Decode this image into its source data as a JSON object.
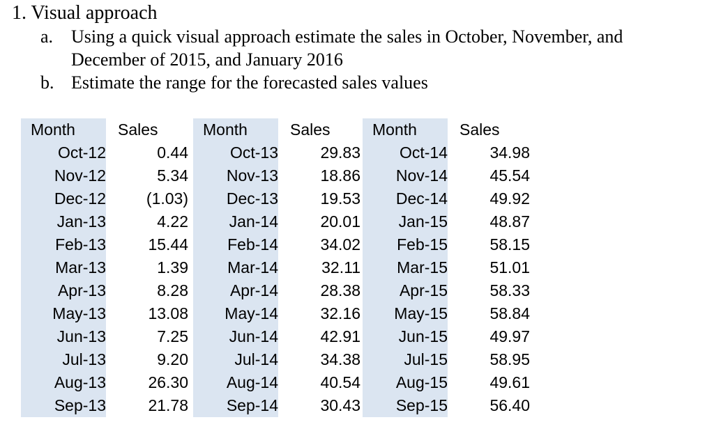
{
  "problem": {
    "title": "1. Visual approach",
    "items": [
      {
        "marker": "a.",
        "lines": [
          "Using a quick visual approach estimate the sales in October, November, and",
          "December of 2015, and January 2016"
        ]
      },
      {
        "marker": "b.",
        "lines": [
          "Estimate the range for the forecasted sales values"
        ]
      }
    ]
  },
  "tables": [
    {
      "headers": [
        "Month",
        "Sales"
      ],
      "rows": [
        [
          "Oct-12",
          "0.44"
        ],
        [
          "Nov-12",
          "5.34"
        ],
        [
          "Dec-12",
          "(1.03)"
        ],
        [
          "Jan-13",
          "4.22"
        ],
        [
          "Feb-13",
          "15.44"
        ],
        [
          "Mar-13",
          "1.39"
        ],
        [
          "Apr-13",
          "8.28"
        ],
        [
          "May-13",
          "13.08"
        ],
        [
          "Jun-13",
          "7.25"
        ],
        [
          "Jul-13",
          "9.20"
        ],
        [
          "Aug-13",
          "26.30"
        ],
        [
          "Sep-13",
          "21.78"
        ]
      ]
    },
    {
      "headers": [
        "Month",
        "Sales"
      ],
      "rows": [
        [
          "Oct-13",
          "29.83"
        ],
        [
          "Nov-13",
          "18.86"
        ],
        [
          "Dec-13",
          "19.53"
        ],
        [
          "Jan-14",
          "20.01"
        ],
        [
          "Feb-14",
          "34.02"
        ],
        [
          "Mar-14",
          "32.11"
        ],
        [
          "Apr-14",
          "28.38"
        ],
        [
          "May-14",
          "32.16"
        ],
        [
          "Jun-14",
          "42.91"
        ],
        [
          "Jul-14",
          "34.38"
        ],
        [
          "Aug-14",
          "40.54"
        ],
        [
          "Sep-14",
          "30.43"
        ]
      ]
    },
    {
      "headers": [
        "Month",
        "Sales"
      ],
      "rows": [
        [
          "Oct-14",
          "34.98"
        ],
        [
          "Nov-14",
          "45.54"
        ],
        [
          "Dec-14",
          "49.92"
        ],
        [
          "Jan-15",
          "48.87"
        ],
        [
          "Feb-15",
          "58.15"
        ],
        [
          "Mar-15",
          "51.01"
        ],
        [
          "Apr-15",
          "58.33"
        ],
        [
          "May-15",
          "58.84"
        ],
        [
          "Jun-15",
          "49.97"
        ],
        [
          "Jul-15",
          "58.95"
        ],
        [
          "Aug-15",
          "49.61"
        ],
        [
          "Sep-15",
          "56.40"
        ]
      ]
    }
  ],
  "colors": {
    "month_column_fill": "#dbe5f1",
    "text": "#000000",
    "background": "#ffffff"
  }
}
